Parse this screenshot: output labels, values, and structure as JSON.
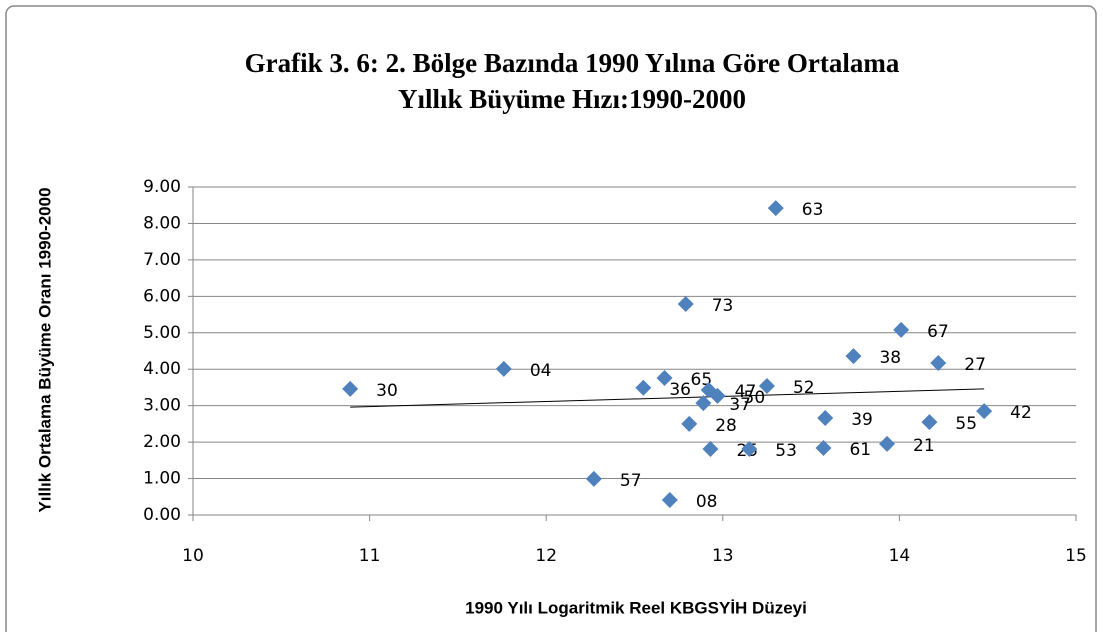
{
  "chart_data": {
    "type": "scatter",
    "title": [
      "Grafik 3. 6: 2. Bölge Bazında 1990 Yılına Göre Ortalama",
      "Yıllık Büyüme Hızı:1990-2000"
    ],
    "x_label": "1990 Yılı Logaritmik Reel KBGSYİH Düzeyi",
    "y_label": "Yıllık Ortalama Büyüme Oranı 1990-2000",
    "color": "#4f81bd",
    "labels": [
      "30",
      "04",
      "57",
      "36",
      "65",
      "08",
      "73",
      "28",
      "37",
      "47",
      "50",
      "25",
      "53",
      "52",
      "63",
      "39",
      "61",
      "38",
      "21",
      "67",
      "27",
      "55",
      "42"
    ],
    "x": [
      10.89,
      11.76,
      12.27,
      12.55,
      12.67,
      12.7,
      12.79,
      12.81,
      12.89,
      12.92,
      12.97,
      12.93,
      13.15,
      13.25,
      13.3,
      13.58,
      13.57,
      13.74,
      13.93,
      14.01,
      14.22,
      14.17,
      14.48
    ],
    "y": [
      3.46,
      4.01,
      0.99,
      3.49,
      3.76,
      0.41,
      5.79,
      2.5,
      3.07,
      3.43,
      3.27,
      1.81,
      1.81,
      3.54,
      8.42,
      2.66,
      1.84,
      4.36,
      1.95,
      5.08,
      4.17,
      2.55,
      2.85
    ],
    "trendline": {
      "x": [
        10.89,
        14.48
      ],
      "y": [
        2.96,
        3.46
      ]
    },
    "xlim": [
      10,
      15
    ],
    "xticks": [
      10,
      11,
      12,
      13,
      14,
      15
    ],
    "ylim": [
      0,
      9
    ],
    "yticks": [
      {
        "value": 0,
        "label": "0.00"
      },
      {
        "value": 1,
        "label": "1.00"
      },
      {
        "value": 2,
        "label": "2.00"
      },
      {
        "value": 3,
        "label": "3.00"
      },
      {
        "value": 4,
        "label": "4.00"
      },
      {
        "value": 5,
        "label": "5.00"
      },
      {
        "value": 6,
        "label": "6.00"
      },
      {
        "value": 7,
        "label": "7.00"
      },
      {
        "value": 8,
        "label": "8.00"
      },
      {
        "value": 9,
        "label": "9.00"
      }
    ],
    "grid": true
  }
}
